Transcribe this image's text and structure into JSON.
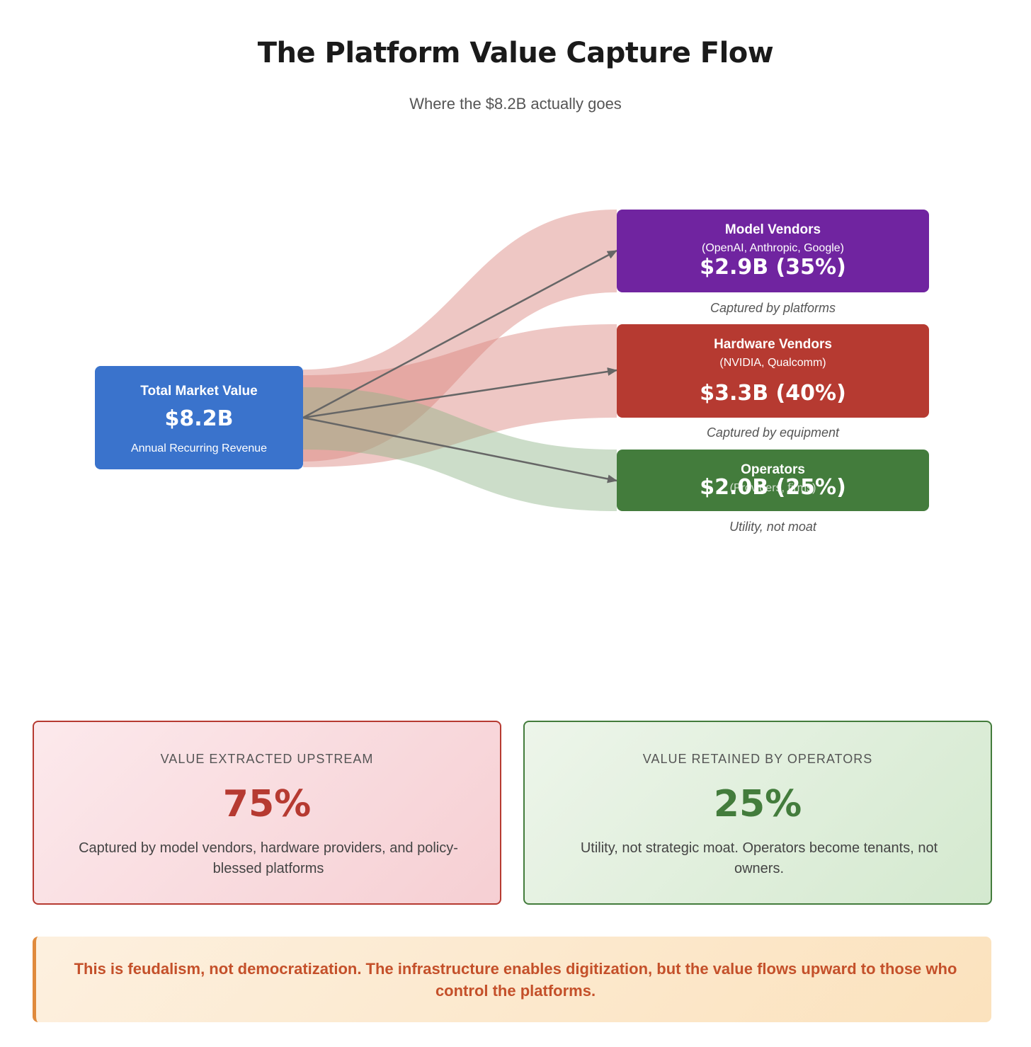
{
  "header": {
    "title": "The Platform Value Capture Flow",
    "subtitle": "Where the $8.2B actually goes"
  },
  "source": {
    "name": "Total Market Value",
    "value": "$8.2B",
    "sub": "Annual Recurring Revenue",
    "color": "#3a73cc"
  },
  "targets": [
    {
      "name": "Model Vendors",
      "sub": "(OpenAI, Anthropic, Google)",
      "value": "$2.9B (35%)",
      "caption": "Captured by platforms",
      "color": "#7024a0",
      "share": 35
    },
    {
      "name": "Hardware Vendors",
      "sub": "(NVIDIA, Qualcomm)",
      "value": "$3.3B (40%)",
      "caption": "Captured by equipment",
      "color": "#b63a31",
      "share": 40
    },
    {
      "name": "Operators",
      "sub": "(Providers, firms)",
      "value": "$2.0B (25%)",
      "caption": "Utility, not moat",
      "color": "#437c3c",
      "share": 25
    }
  ],
  "flow_colors": {
    "upstream": "#d9837d",
    "operators": "#8fb487",
    "arrow": "#666666"
  },
  "cards": {
    "upstream": {
      "label": "VALUE EXTRACTED UPSTREAM",
      "percent": "75%",
      "description": "Captured by model vendors, hardware providers, and policy-blessed platforms"
    },
    "operators": {
      "label": "VALUE RETAINED BY OPERATORS",
      "percent": "25%",
      "description": "Utility, not strategic moat. Operators become tenants, not owners."
    }
  },
  "callout": {
    "text": "This is feudalism, not democratization. The infrastructure enables digitization, but the value flows upward to those who control the platforms."
  }
}
